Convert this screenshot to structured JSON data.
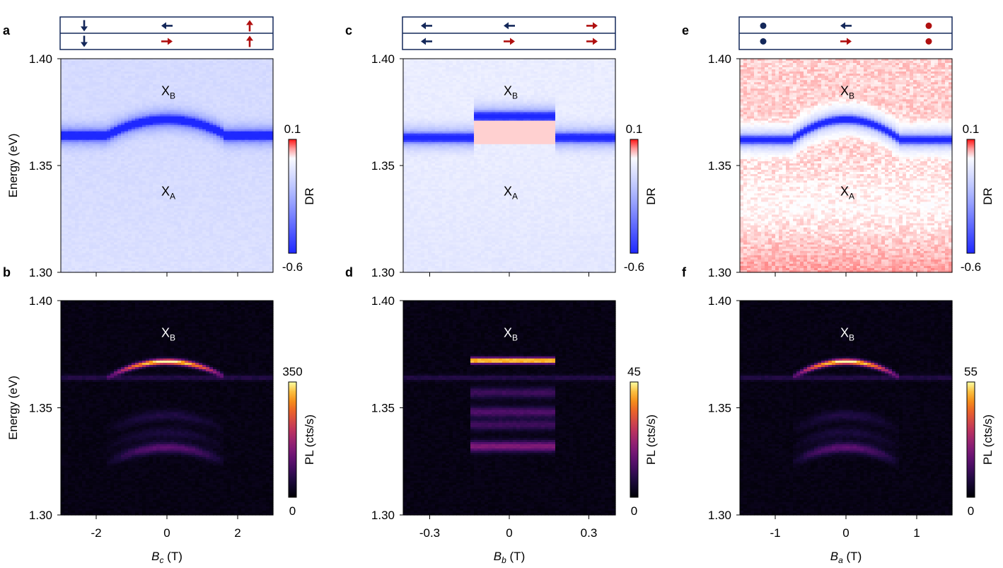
{
  "colors": {
    "navy": "#14285a",
    "red": "#b01010",
    "dr_negative": "#1a2bff",
    "dr_zero": "#ffffff",
    "dr_positive": "#ff1a1a"
  },
  "panels": [
    {
      "letter": "a",
      "type": "DR",
      "col": 0,
      "row": 0
    },
    {
      "letter": "b",
      "type": "PL",
      "col": 0,
      "row": 1
    },
    {
      "letter": "c",
      "type": "DR",
      "col": 1,
      "row": 0
    },
    {
      "letter": "d",
      "type": "PL",
      "col": 1,
      "row": 1
    },
    {
      "letter": "e",
      "type": "DR",
      "col": 2,
      "row": 0
    },
    {
      "letter": "f",
      "type": "PL",
      "col": 2,
      "row": 1
    }
  ],
  "spin_diagrams": [
    {
      "top": [
        "arrow-down-navy",
        "arrow-left-navy",
        "arrow-up-red"
      ],
      "bottom": [
        "arrow-down-navy",
        "arrow-right-red",
        "arrow-up-red"
      ]
    },
    {
      "top": [
        "arrow-left-navy",
        "arrow-left-navy",
        "arrow-right-red"
      ],
      "bottom": [
        "arrow-left-navy",
        "arrow-right-red",
        "arrow-right-red"
      ]
    },
    {
      "top": [
        "dot-navy",
        "arrow-left-navy",
        "dot-red"
      ],
      "bottom": [
        "dot-navy",
        "arrow-right-red",
        "dot-red"
      ]
    }
  ],
  "chart_data": [
    {
      "type": "heatmap",
      "panel": "a",
      "quantity": "DR",
      "ylabel": "Energy (eV)",
      "ylim": [
        1.3,
        1.4
      ],
      "yticks": [
        "1.40",
        "1.35",
        "1.30"
      ],
      "xlim": [
        -3,
        3
      ],
      "xticks": [
        -2,
        0,
        2
      ],
      "labels": [
        {
          "text": "X",
          "sub": "B",
          "x": 0,
          "y": 1.383
        },
        {
          "text": "X",
          "sub": "A",
          "x": 0,
          "y": 1.336
        }
      ],
      "colorbar": {
        "label": "DR",
        "max": "0.1",
        "min": "-0.6",
        "colormap": "blue-white-red"
      },
      "features": [
        {
          "kind": "dome",
          "x_edges": [
            -1.65,
            1.65
          ],
          "y_outside": 1.364,
          "y_peak": 1.371,
          "sign": "negative"
        }
      ]
    },
    {
      "type": "heatmap",
      "panel": "b",
      "quantity": "PL",
      "xlabel": "B_c (T)",
      "ylabel": "Energy (eV)",
      "ylim": [
        1.3,
        1.4
      ],
      "yticks": [
        "1.40",
        "1.35",
        "1.30"
      ],
      "xlim": [
        -3,
        3
      ],
      "xticks": [
        "-2",
        "0",
        "2"
      ],
      "labels": [
        {
          "text": "X",
          "sub": "B",
          "x": 0,
          "y": 1.383
        }
      ],
      "colorbar": {
        "label": "PL (cts/s)",
        "max": "350",
        "min": "0",
        "colormap": "inferno"
      },
      "features": [
        {
          "kind": "dome",
          "x_edges": [
            -1.65,
            1.65
          ],
          "y_outside": 1.364,
          "y_peak": 1.371,
          "peak_intensity": 350
        }
      ]
    },
    {
      "type": "heatmap",
      "panel": "c",
      "quantity": "DR",
      "ylabel": "",
      "ylim": [
        1.3,
        1.4
      ],
      "yticks": [
        "1.40",
        "1.35",
        "1.30"
      ],
      "xlim": [
        -0.4,
        0.4
      ],
      "xticks": [
        -0.3,
        0,
        0.3
      ],
      "labels": [
        {
          "text": "X",
          "sub": "B",
          "x": 0,
          "y": 1.383
        },
        {
          "text": "X",
          "sub": "A",
          "x": 0,
          "y": 1.336
        }
      ],
      "colorbar": {
        "label": "DR",
        "max": "0.1",
        "min": "-0.6",
        "colormap": "blue-white-red"
      },
      "features": [
        {
          "kind": "step",
          "x_edges": [
            -0.13,
            0.17
          ],
          "y_outside": 1.363,
          "y_inside": 1.373,
          "sign": "negative"
        }
      ]
    },
    {
      "type": "heatmap",
      "panel": "d",
      "quantity": "PL",
      "xlabel": "B_b (T)",
      "ylabel": "",
      "ylim": [
        1.3,
        1.4
      ],
      "yticks": [
        "1.40",
        "1.35",
        "1.30"
      ],
      "xlim": [
        -0.4,
        0.4
      ],
      "xticks": [
        "-0.3",
        "0",
        "0.3"
      ],
      "labels": [
        {
          "text": "X",
          "sub": "B",
          "x": 0,
          "y": 1.383
        }
      ],
      "colorbar": {
        "label": "PL (cts/s)",
        "max": "45",
        "min": "0",
        "colormap": "inferno"
      },
      "features": [
        {
          "kind": "step",
          "x_edges": [
            -0.15,
            0.17
          ],
          "y_outside": 1.364,
          "y_inside": 1.372,
          "peak_intensity": 45
        }
      ]
    },
    {
      "type": "heatmap",
      "panel": "e",
      "quantity": "DR",
      "ylabel": "",
      "ylim": [
        1.3,
        1.4
      ],
      "yticks": [
        "1.40",
        "1.35",
        "1.30"
      ],
      "xlim": [
        -1.5,
        1.5
      ],
      "xticks": [
        -1,
        0,
        1
      ],
      "labels": [
        {
          "text": "X",
          "sub": "B",
          "x": 0,
          "y": 1.383
        },
        {
          "text": "X",
          "sub": "A",
          "x": 0,
          "y": 1.336
        }
      ],
      "colorbar": {
        "label": "DR",
        "max": "0.1",
        "min": "-0.6",
        "colormap": "blue-white-red"
      },
      "features": [
        {
          "kind": "dome",
          "x_edges": [
            -0.75,
            0.75
          ],
          "y_outside": 1.362,
          "y_peak": 1.371,
          "sign": "negative"
        }
      ]
    },
    {
      "type": "heatmap",
      "panel": "f",
      "quantity": "PL",
      "xlabel": "B_a (T)",
      "ylabel": "",
      "ylim": [
        1.3,
        1.4
      ],
      "yticks": [
        "1.40",
        "1.35",
        "1.30"
      ],
      "xlim": [
        -1.5,
        1.5
      ],
      "xticks": [
        "-1",
        "0",
        "1"
      ],
      "labels": [
        {
          "text": "X",
          "sub": "B",
          "x": 0,
          "y": 1.383
        }
      ],
      "colorbar": {
        "label": "PL (cts/s)",
        "max": "55",
        "min": "0",
        "colormap": "inferno"
      },
      "features": [
        {
          "kind": "dome",
          "x_edges": [
            -0.75,
            0.75
          ],
          "y_outside": 1.364,
          "y_peak": 1.371,
          "peak_intensity": 55
        }
      ]
    }
  ],
  "axis_text": {
    "energy_label": "Energy (eV)",
    "xlabels": [
      {
        "symbol": "B",
        "sub": "c",
        "unit": " (T)"
      },
      {
        "symbol": "B",
        "sub": "b",
        "unit": " (T)"
      },
      {
        "symbol": "B",
        "sub": "a",
        "unit": " (T)"
      }
    ]
  }
}
